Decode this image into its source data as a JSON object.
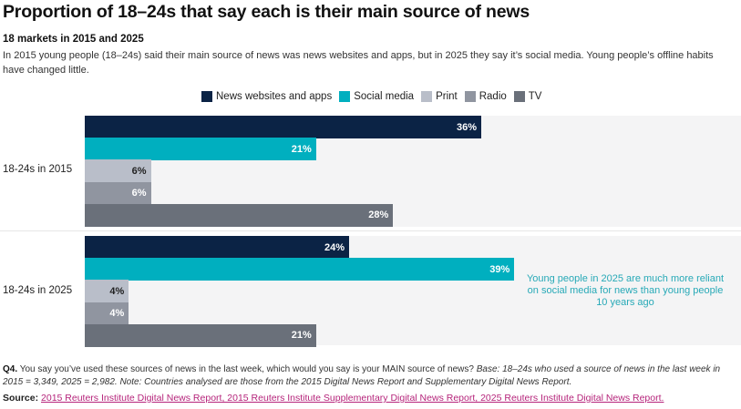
{
  "header": {
    "title": "Proportion of 18–24s that say each is their main source of news",
    "subtitle": "18 markets in 2015 and 2025",
    "description": "In 2015 young people (18–24s) said their main source of news was news websites and apps, but in 2025 they say it’s social media. Young people’s offline habits have changed little."
  },
  "chart_data": {
    "type": "bar",
    "orientation": "horizontal",
    "title": "Proportion of 18–24s that say each is their main source of news",
    "subtitle": "18 markets in 2015 and 2025",
    "xlabel": "",
    "ylabel": "",
    "xlim": [
      0,
      60
    ],
    "grid": false,
    "legend_position": "top",
    "unit": "%",
    "categories": [
      "18-24s in 2015",
      "18-24s in 2025"
    ],
    "series": [
      {
        "name": "News websites and apps",
        "color": "#0b2345",
        "label_color": "#ffffff",
        "values": [
          36,
          24
        ]
      },
      {
        "name": "Social media",
        "color": "#00afbf",
        "label_color": "#ffffff",
        "values": [
          21,
          39
        ]
      },
      {
        "name": "Print",
        "color": "#b9bec9",
        "label_color": "#222222",
        "values": [
          6,
          4
        ]
      },
      {
        "name": "Radio",
        "color": "#9095a0",
        "label_color": "#ffffff",
        "values": [
          6,
          4
        ]
      },
      {
        "name": "TV",
        "color": "#6a707a",
        "label_color": "#ffffff",
        "values": [
          28,
          21
        ]
      }
    ],
    "annotations": [
      {
        "category": "18-24s in 2025",
        "text": "Young people in 2025 are much more reliant on social media for news than young people 10 years ago",
        "color": "#27a9b7"
      }
    ]
  },
  "footnote": {
    "question_label": "Q4.",
    "question_text": " You say you’ve used these sources of news in the last week, which would you say is your MAIN source of news? ",
    "base_text": "Base: 18–24s who used a source of news in the last week in 2015 = 3,349, 2025 = 2,982. Note: Countries analysed are those from the 2015 Digital News Report and Supplementary Digital News Report."
  },
  "source": {
    "label": "Source:",
    "link_text": "2015 Reuters Institute Digital News Report, 2015 Reuters Institute Supplementary Digital News Report, 2025 Reuters Institute Digital News Report."
  }
}
